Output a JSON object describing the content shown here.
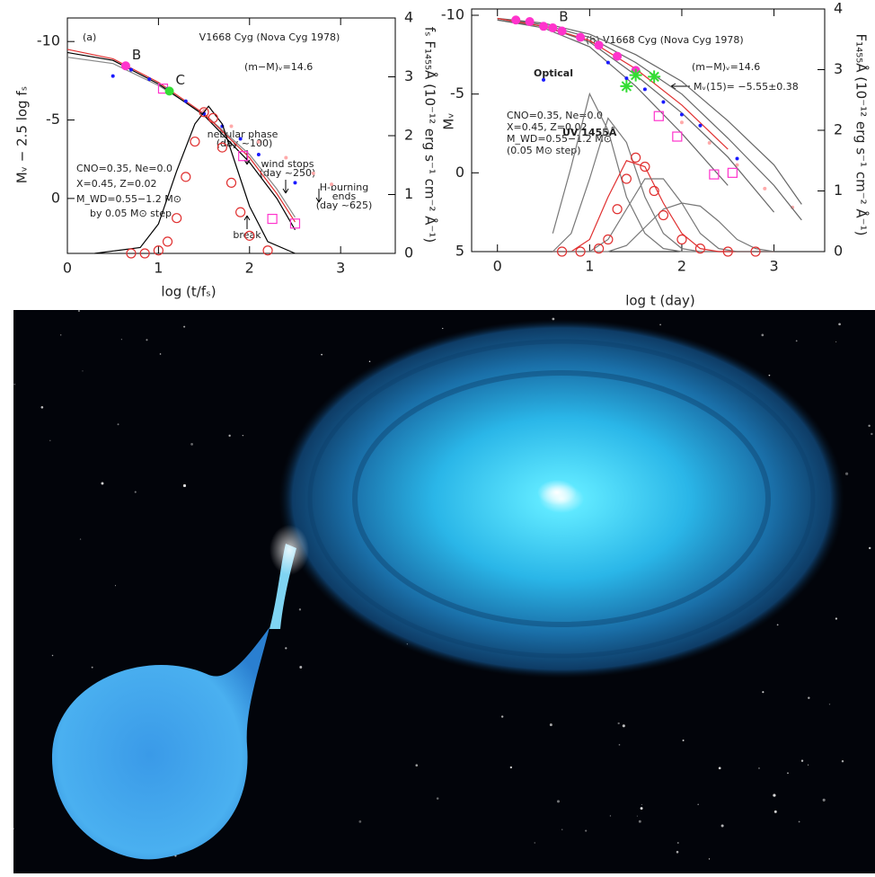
{
  "chart_data": [
    {
      "type": "line",
      "x_label": "log (t/fₛ)",
      "y_label": "Mᵥ − 2.5 log fₛ",
      "y2_label": "fₛ F₁₄₅₅Å (10⁻¹² erg s⁻¹ cm⁻² Å⁻¹)",
      "xlim": [
        0,
        3.6
      ],
      "xticks": [
        0,
        1,
        2,
        3
      ],
      "ylim": [
        3.5,
        -11.5
      ],
      "yticks": [
        -10,
        -5,
        0
      ],
      "y2lim": [
        0,
        4
      ],
      "y2ticks": [
        0,
        1,
        2,
        3,
        4
      ],
      "annotations": [
        "(a)",
        "V1668 Cyg (Nova Cyg 1978)",
        "(m−M)ᵥ=14.6",
        "nebular phase",
        "(day ~100)",
        "wind stops",
        "(day ~250)",
        "H-burning",
        "ends",
        "(day ~625)",
        "break",
        "CNO=0.35, Ne=0.0",
        "X=0.45, Z=0.02",
        "M_WD=0.55−1.2 M⊙",
        "by 0.05 M⊙ step"
      ],
      "series": [
        {
          "style": "dot",
          "color": "#ffaaaa",
          "x": [
            1.5,
            1.8,
            2.1,
            2.4,
            2.7,
            2.9
          ],
          "values": [
            -5.6,
            -4.6,
            -3.6,
            -2.6,
            -1.6,
            -0.9
          ]
        },
        {
          "style": "line",
          "color": "#888888",
          "x": [
            0,
            0.5,
            1,
            1.5,
            2,
            2.3,
            2.5
          ],
          "values": [
            -9.0,
            -8.6,
            -7.2,
            -5.4,
            -2.8,
            -0.6,
            1.2
          ]
        },
        {
          "style": "line",
          "color": "#000000",
          "x": [
            0,
            0.5,
            1,
            1.5,
            2,
            2.3,
            2.5
          ],
          "values": [
            -9.3,
            -8.8,
            -7.3,
            -5.3,
            -2.3,
            0.0,
            2.0
          ]
        },
        {
          "style": "line",
          "color": "#e03030",
          "x": [
            0,
            0.5,
            1,
            1.5,
            2,
            2.3,
            2.5
          ],
          "values": [
            -9.5,
            -8.9,
            -7.4,
            -5.4,
            -2.6,
            -0.3,
            1.5
          ]
        },
        {
          "style": "dot",
          "color": "#1a1aff",
          "x": [
            0.5,
            0.7,
            0.9,
            1.1,
            1.3,
            1.5,
            1.7,
            1.9,
            2.1,
            2.5
          ],
          "values": [
            -7.8,
            -8.2,
            -7.6,
            -7.0,
            -6.2,
            -5.4,
            -4.6,
            -3.8,
            -2.8,
            -1.0
          ]
        },
        {
          "style": "square",
          "color": "#ff33cc",
          "x": [
            1.05,
            1.93,
            2.25,
            2.5
          ],
          "values": [
            -7.0,
            -2.7,
            1.3,
            1.6
          ]
        },
        {
          "style": "line",
          "color": "#000000",
          "axis": "y2",
          "x": [
            0.3,
            0.8,
            1.0,
            1.2,
            1.4,
            1.55,
            1.7,
            1.85,
            2.0,
            2.2,
            2.5
          ],
          "values": [
            0,
            0.1,
            0.5,
            1.4,
            2.2,
            2.5,
            2.2,
            1.5,
            0.8,
            0.2,
            0
          ]
        },
        {
          "style": "circle",
          "color": "#e03030",
          "axis": "y2",
          "x": [
            0.7,
            0.85,
            1.0,
            1.1,
            1.2,
            1.3,
            1.4,
            1.5,
            1.6,
            1.7,
            1.8,
            1.9,
            2.0,
            2.2
          ],
          "values": [
            0,
            0,
            0.05,
            0.2,
            0.6,
            1.3,
            1.9,
            2.4,
            2.3,
            1.8,
            1.2,
            0.7,
            0.3,
            0.05
          ]
        },
        {
          "name": "B",
          "style": "bigdot",
          "color": "#ff33cc",
          "x": [
            0.64
          ],
          "values": [
            -8.45
          ]
        },
        {
          "name": "C",
          "style": "bigdot",
          "color": "#33dd33",
          "x": [
            1.12
          ],
          "values": [
            -6.84
          ]
        }
      ]
    },
    {
      "type": "line",
      "x_label": "log t (day)",
      "y_label": "Mᵥ",
      "y2_label": "F₁₄₅₅Å (10⁻¹² erg s⁻¹ cm⁻² Å⁻¹)",
      "xlim": [
        -0.28,
        3.55
      ],
      "xticks": [
        0,
        1,
        2,
        3
      ],
      "ylim": [
        5,
        -10.4
      ],
      "yticks": [
        -10,
        -5,
        0,
        5
      ],
      "y2lim": [
        0,
        4
      ],
      "y2ticks": [
        0,
        1,
        2,
        3,
        4
      ],
      "annotations": [
        "(b) V1668 Cyg (Nova Cyg 1978)",
        "(m−M)ᵥ=14.6",
        "Optical",
        "Mᵥ(15)= −5.55±0.38",
        "CNO=0.35, Ne=0.0",
        "X=0.45, Z=0.02",
        "M_WD=0.55−1.2 M⊙",
        "(0.05 M⊙ step)",
        "UV 1455Å"
      ],
      "series": [
        {
          "style": "dot",
          "color": "#ffaaaa",
          "x": [
            2.0,
            2.3,
            2.6,
            2.9,
            3.2
          ],
          "values": [
            -3.2,
            -1.9,
            -0.5,
            1.0,
            2.2
          ]
        },
        {
          "style": "line",
          "color": "#666666",
          "x": [
            0,
            0.5,
            1,
            1.5,
            2,
            2.5,
            3,
            3.3
          ],
          "values": [
            -9.7,
            -9.2,
            -8.0,
            -5.5,
            -2.5,
            0.8,
            null,
            null
          ]
        },
        {
          "style": "line",
          "color": "#666666",
          "x": [
            0,
            0.5,
            1,
            1.5,
            2,
            2.5,
            3,
            3.3
          ],
          "values": [
            -9.7,
            -9.3,
            -8.3,
            -6.2,
            -3.8,
            -1.0,
            2.5,
            null
          ]
        },
        {
          "style": "line",
          "color": "#666666",
          "x": [
            0,
            0.5,
            1,
            1.5,
            2,
            2.5,
            3,
            3.3
          ],
          "values": [
            -9.8,
            -9.4,
            -8.6,
            -7.0,
            -5.0,
            -2.2,
            0.8,
            3.0
          ]
        },
        {
          "style": "line",
          "color": "#666666",
          "x": [
            0,
            0.5,
            1,
            1.5,
            2,
            2.5,
            3,
            3.3
          ],
          "values": [
            -9.8,
            -9.5,
            -8.8,
            -7.5,
            -5.8,
            -3.3,
            -0.5,
            2.0
          ]
        },
        {
          "style": "line",
          "color": "#e03030",
          "x": [
            0,
            0.5,
            1,
            1.5,
            2,
            2.5,
            3,
            3.3
          ],
          "values": [
            -9.8,
            -9.3,
            -8.4,
            -6.6,
            -4.3,
            -1.5,
            null,
            null
          ]
        },
        {
          "style": "dot",
          "color": "#1a1aff",
          "x": [
            0.5,
            1.2,
            1.4,
            1.6,
            1.8,
            2.0,
            2.2,
            2.6
          ],
          "values": [
            -5.9,
            -7.0,
            -6.0,
            -5.3,
            -4.5,
            -3.7,
            -3.0,
            -0.9
          ]
        },
        {
          "style": "bigdot",
          "color": "#ff33cc",
          "x": [
            0.2,
            0.35,
            0.5,
            0.7,
            0.9,
            1.1,
            1.3,
            1.5
          ],
          "values": [
            -9.7,
            -9.6,
            -9.3,
            -9.0,
            -8.6,
            -8.1,
            -7.4,
            -6.5
          ]
        },
        {
          "style": "star",
          "color": "#33dd33",
          "x": [
            1.4,
            1.5,
            1.7
          ],
          "values": [
            -5.5,
            -6.2,
            -6.1
          ]
        },
        {
          "style": "square",
          "color": "#ff33cc",
          "x": [
            1.75,
            1.95,
            2.35,
            2.55
          ],
          "values": [
            -3.6,
            -2.3,
            0.1,
            0.0
          ]
        },
        {
          "style": "line",
          "color": "#777777",
          "axis": "y2",
          "x": [
            0.6,
            0.8,
            1.0,
            1.2,
            1.4,
            1.6,
            1.8,
            2.0,
            2.2,
            2.4,
            2.6,
            2.8,
            3.0
          ],
          "values": [
            0.3,
            1.4,
            2.6,
            2.0,
            0.9,
            0.3,
            0.05,
            0,
            0,
            0,
            0,
            0,
            0
          ]
        },
        {
          "style": "line",
          "color": "#777777",
          "axis": "y2",
          "x": [
            0.6,
            0.8,
            1.0,
            1.2,
            1.4,
            1.6,
            1.8,
            2.0,
            2.2,
            2.4,
            2.6,
            2.8,
            3.0
          ],
          "values": [
            0,
            0.3,
            1.2,
            2.2,
            1.8,
            0.9,
            0.3,
            0.05,
            0,
            0,
            0,
            0,
            0
          ]
        },
        {
          "style": "line",
          "color": "#e03030",
          "axis": "y2",
          "x": [
            0.6,
            0.8,
            1.0,
            1.2,
            1.4,
            1.6,
            1.8,
            2.0,
            2.2,
            2.4,
            2.6,
            2.8,
            3.0
          ],
          "values": [
            0,
            0,
            0.2,
            0.9,
            1.5,
            1.4,
            0.8,
            0.3,
            0.05,
            0,
            0,
            0,
            0
          ]
        },
        {
          "style": "line",
          "color": "#777777",
          "axis": "y2",
          "x": [
            0.6,
            0.8,
            1.0,
            1.2,
            1.4,
            1.6,
            1.8,
            2.0,
            2.2,
            2.4,
            2.6,
            2.8,
            3.0
          ],
          "values": [
            0,
            0,
            0,
            0.2,
            0.7,
            1.2,
            1.2,
            0.8,
            0.3,
            0.05,
            0,
            0,
            0
          ]
        },
        {
          "style": "line",
          "color": "#777777",
          "axis": "y2",
          "x": [
            0.6,
            0.8,
            1.0,
            1.2,
            1.4,
            1.6,
            1.8,
            2.0,
            2.2,
            2.4,
            2.6,
            2.8,
            3.0
          ],
          "values": [
            0,
            0,
            0,
            0,
            0.1,
            0.4,
            0.7,
            0.8,
            0.75,
            0.5,
            0.2,
            0.05,
            0
          ]
        },
        {
          "style": "circle",
          "color": "#e03030",
          "axis": "y2",
          "x": [
            0.7,
            0.9,
            1.1,
            1.2,
            1.3,
            1.4,
            1.5,
            1.6,
            1.7,
            1.8,
            2.0,
            2.2,
            2.5,
            2.8
          ],
          "values": [
            0,
            0,
            0.05,
            0.2,
            0.7,
            1.2,
            1.55,
            1.4,
            1.0,
            0.6,
            0.2,
            0.05,
            0,
            0
          ]
        },
        {
          "name": "B",
          "style": "bigdot",
          "color": "#ff33cc",
          "x": [
            0.6
          ],
          "values": [
            -9.2
          ]
        }
      ]
    }
  ]
}
